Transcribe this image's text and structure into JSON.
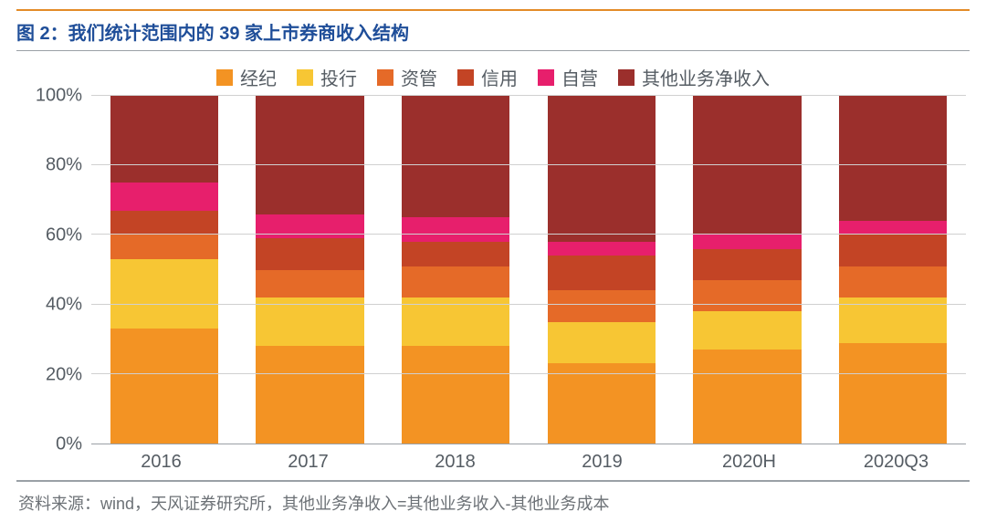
{
  "title": "图 2：我们统计范围内的 39 家上市券商收入结构",
  "source": "资料来源：wind，天风证券研究所，其他业务净收入=其他业务收入-其他业务成本",
  "chart": {
    "type": "stacked-bar-100",
    "categories": [
      "2016",
      "2017",
      "2018",
      "2019",
      "2020H",
      "2020Q3"
    ],
    "series": [
      {
        "name": "经纪",
        "color": "#f39323"
      },
      {
        "name": "投行",
        "color": "#f7c634"
      },
      {
        "name": "资管",
        "color": "#e56a28"
      },
      {
        "name": "信用",
        "color": "#c34425"
      },
      {
        "name": "自营",
        "color": "#e71f6c"
      },
      {
        "name": "其他业务净收入",
        "color": "#9b2f2c"
      }
    ],
    "values": [
      [
        33,
        20,
        7,
        7,
        8,
        25
      ],
      [
        28,
        14,
        8,
        9,
        7,
        34
      ],
      [
        28,
        14,
        9,
        7,
        7,
        35
      ],
      [
        23,
        12,
        9,
        10,
        4,
        42
      ],
      [
        27,
        11,
        9,
        9,
        4,
        40
      ],
      [
        29,
        13,
        9,
        9,
        4,
        36
      ]
    ],
    "y_ticks": [
      "0%",
      "20%",
      "40%",
      "60%",
      "80%",
      "100%"
    ],
    "y_tick_pos": [
      0,
      20,
      40,
      60,
      80,
      100
    ],
    "background_color": "#ffffff",
    "grid_color": "#d0d0d0",
    "axis_color": "#9aa0a6",
    "title_color": "#1f4e99",
    "accent_color": "#e38b27",
    "label_fontsize": 20,
    "title_fontsize": 20,
    "bar_width_ratio": 0.74
  }
}
